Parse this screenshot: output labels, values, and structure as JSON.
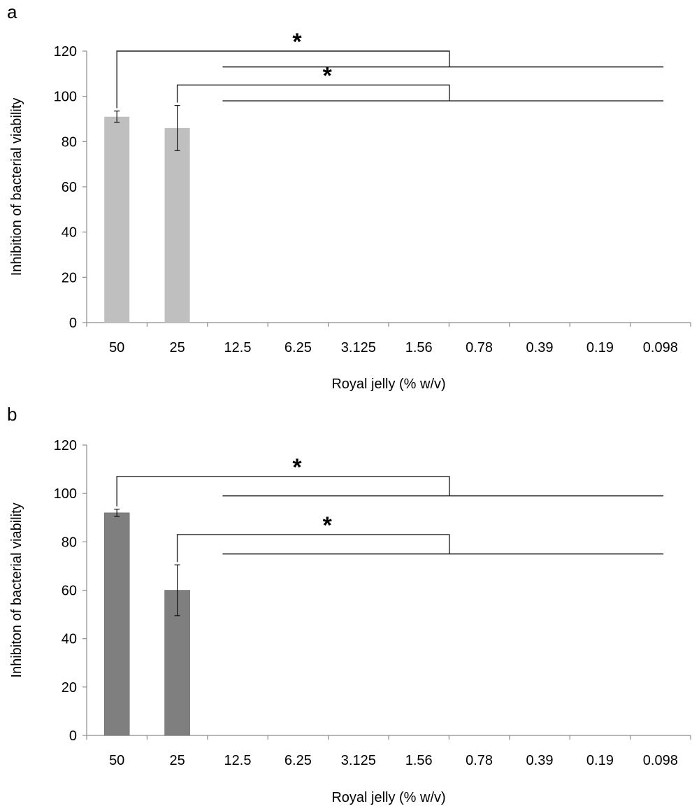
{
  "chart_data": [
    {
      "panel_label": "a",
      "type": "bar",
      "categories": [
        "50",
        "25",
        "12.5",
        "6.25",
        "3.125",
        "1.56",
        "0.78",
        "0.39",
        "0.19",
        "0.098"
      ],
      "values": [
        91,
        86,
        0,
        0,
        0,
        0,
        0,
        0,
        0,
        0
      ],
      "error": [
        2.5,
        10,
        0,
        0,
        0,
        0,
        0,
        0,
        0,
        0
      ],
      "ylabel": "Inhibition of bacterial viability",
      "xlabel": "Royal jelly (% w/v)",
      "ylim": [
        0,
        120
      ],
      "yticks": [
        0,
        20,
        40,
        60,
        80,
        100,
        120
      ],
      "bar_color": "#bfbfbf",
      "grid": false,
      "significance": [
        {
          "from_category": "50",
          "to_category_start": "12.5",
          "to_category_end": "0.098",
          "bracket_top": 120,
          "baseline": 113,
          "label": "*"
        },
        {
          "from_category": "25",
          "to_category_start": "12.5",
          "to_category_end": "0.098",
          "bracket_top": 105,
          "baseline": 98,
          "label": "*"
        }
      ]
    },
    {
      "panel_label": "b",
      "type": "bar",
      "categories": [
        "50",
        "25",
        "12.5",
        "6.25",
        "3.125",
        "1.56",
        "0.78",
        "0.39",
        "0.19",
        "0.098"
      ],
      "values": [
        92,
        60,
        0,
        0,
        0,
        0,
        0,
        0,
        0,
        0
      ],
      "error": [
        1.5,
        10.5,
        0,
        0,
        0,
        0,
        0,
        0,
        0,
        0
      ],
      "ylabel": "Inhibiton of bacterial viability",
      "xlabel": "Royal jelly (% w/v)",
      "ylim": [
        0,
        120
      ],
      "yticks": [
        0,
        20,
        40,
        60,
        80,
        100,
        120
      ],
      "bar_color": "#7f7f7f",
      "grid": false,
      "significance": [
        {
          "from_category": "50",
          "to_category_start": "12.5",
          "to_category_end": "0.098",
          "bracket_top": 107,
          "baseline": 99,
          "label": "*"
        },
        {
          "from_category": "25",
          "to_category_start": "12.5",
          "to_category_end": "0.098",
          "bracket_top": 83,
          "baseline": 75,
          "label": "*"
        }
      ]
    }
  ]
}
